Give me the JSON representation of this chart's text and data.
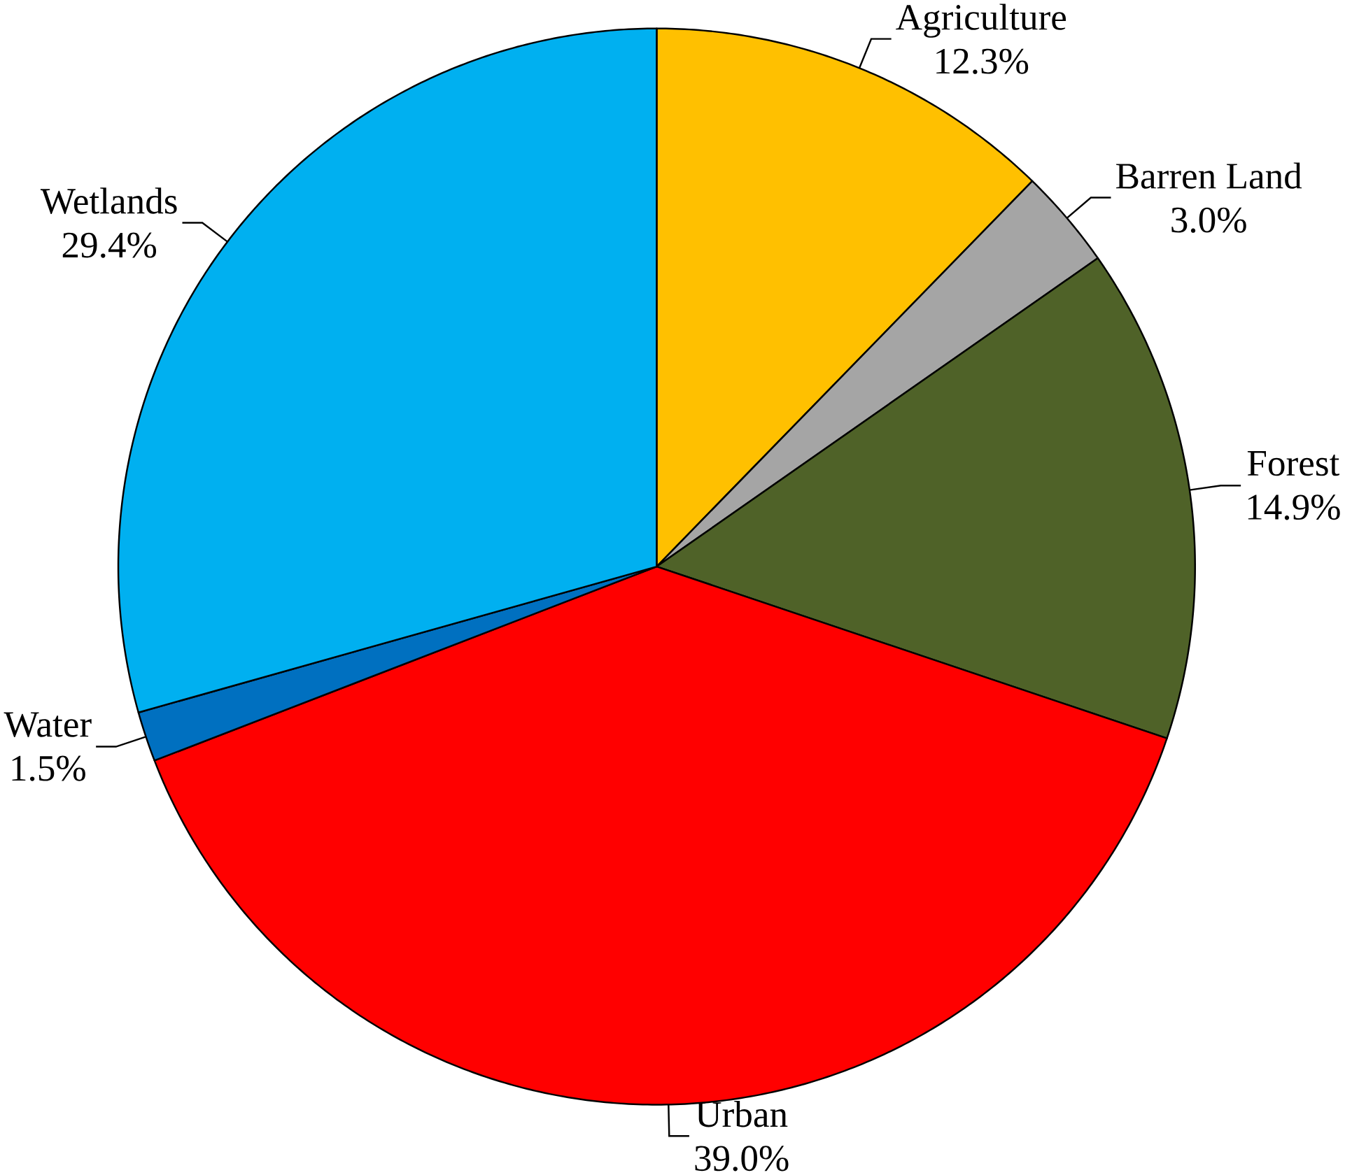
{
  "chart_data": {
    "type": "pie",
    "categories": [
      "Agriculture",
      "Barren Land",
      "Forest",
      "Urban",
      "Water",
      "Wetlands"
    ],
    "values": [
      12.3,
      3.0,
      14.9,
      39.0,
      1.5,
      29.4
    ],
    "colors": [
      "#ffc000",
      "#a5a5a5",
      "#4f6228",
      "#ff0000",
      "#0070c0",
      "#00b0f0"
    ],
    "value_labels": [
      "12.3%",
      "3.0%",
      "14.9%",
      "39.0%",
      "1.5%",
      "29.4%"
    ]
  }
}
